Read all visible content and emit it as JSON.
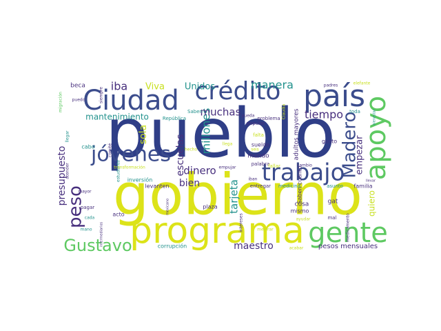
{
  "colors": {
    "background": "#ffffff",
    "navy": "#2f3e87",
    "indigo": "#3b4c8c",
    "purple": "#472f7d",
    "teal": "#21918c",
    "green": "#5ec962",
    "yellowgreen": "#c8e020",
    "yellow": "#dce319",
    "darkpurple": "#440154"
  },
  "words": [
    {
      "text": "pueblo",
      "weight": 1.0,
      "color": "navy"
    },
    {
      "text": "gobierno",
      "weight": 0.8,
      "color": "yellow"
    },
    {
      "text": "programa",
      "weight": 0.58,
      "color": "yellow"
    },
    {
      "text": "país",
      "weight": 0.48,
      "color": "indigo"
    },
    {
      "text": "apoyo",
      "weight": 0.45,
      "color": "green"
    },
    {
      "text": "Ciudad",
      "weight": 0.44,
      "color": "indigo"
    },
    {
      "text": "crédito",
      "weight": 0.4,
      "color": "indigo"
    },
    {
      "text": "gente",
      "weight": 0.43,
      "color": "green"
    },
    {
      "text": "trabajo",
      "weight": 0.36,
      "color": "indigo"
    },
    {
      "text": "jóvenes",
      "weight": 0.33,
      "color": "indigo"
    },
    {
      "text": "Gustavo",
      "weight": 0.3,
      "color": "green"
    },
    {
      "text": "Madero",
      "weight": 0.28,
      "color": "indigo"
    },
    {
      "text": "peso",
      "weight": 0.27,
      "color": "purple"
    },
    {
      "text": "tiempo",
      "weight": 0.16,
      "color": "purple"
    },
    {
      "text": "manera",
      "weight": 0.16,
      "color": "teal"
    },
    {
      "text": "millones",
      "weight": 0.18,
      "color": "teal"
    },
    {
      "text": "muchas",
      "weight": 0.15,
      "color": "purple"
    },
    {
      "text": "dinero",
      "weight": 0.15,
      "color": "purple"
    },
    {
      "text": "escuelas",
      "weight": 0.15,
      "color": "purple"
    },
    {
      "text": "presupuesto",
      "weight": 0.15,
      "color": "purple"
    },
    {
      "text": "empezar",
      "weight": 0.14,
      "color": "purple"
    },
    {
      "text": "maestro",
      "weight": 0.14,
      "color": "purple"
    },
    {
      "text": "tarjeta",
      "weight": 0.15,
      "color": "teal"
    },
    {
      "text": "bien",
      "weight": 0.13,
      "color": "purple"
    },
    {
      "text": "iba",
      "weight": 0.14,
      "color": "purple"
    },
    {
      "text": "Viva",
      "weight": 0.13,
      "color": "yellowgreen"
    },
    {
      "text": "Unidos",
      "weight": 0.13,
      "color": "teal"
    },
    {
      "text": "mantenimiento",
      "weight": 0.11,
      "color": "teal"
    },
    {
      "text": "sola",
      "weight": 0.12,
      "color": "yellowgreen"
    },
    {
      "text": "quiero",
      "weight": 0.12,
      "color": "yellowgreen"
    },
    {
      "text": "pesos mensuales",
      "weight": 0.1,
      "color": "purple"
    },
    {
      "text": "adultos mayores",
      "weight": 0.08,
      "color": "purple"
    },
    {
      "text": "Saben cuánto",
      "weight": 0.07,
      "color": "purple"
    },
    {
      "text": "gusto",
      "weight": 0.07,
      "color": "purple"
    },
    {
      "text": "beca",
      "weight": 0.07,
      "color": "purple"
    },
    {
      "text": "cosa",
      "weight": 0.07,
      "color": "purple"
    },
    {
      "text": "plaza",
      "weight": 0.06,
      "color": "purple"
    },
    {
      "text": "mundo",
      "weight": 0.07,
      "color": "purple"
    },
    {
      "text": "familia",
      "weight": 0.06,
      "color": "purple"
    },
    {
      "text": "gat",
      "weight": 0.07,
      "color": "purple"
    },
    {
      "text": "cabo",
      "weight": 0.07,
      "color": "teal"
    },
    {
      "text": "acto",
      "weight": 0.06,
      "color": "purple"
    },
    {
      "text": "mismo",
      "weight": 0.06,
      "color": "purple"
    },
    {
      "text": "levanten",
      "weight": 0.06,
      "color": "purple"
    },
    {
      "text": "inversión",
      "weight": 0.06,
      "color": "teal"
    },
    {
      "text": "corrupción",
      "weight": 0.06,
      "color": "teal"
    },
    {
      "text": "sueldo",
      "weight": 0.06,
      "color": "purple"
    },
    {
      "text": "problema",
      "weight": 0.06,
      "color": "purple"
    },
    {
      "text": "falta",
      "weight": 0.06,
      "color": "yellowgreen"
    },
    {
      "text": "toda",
      "weight": 0.06,
      "color": "teal"
    },
    {
      "text": "popular",
      "weight": 0.05,
      "color": "purple"
    },
    {
      "text": "palabra",
      "weight": 0.05,
      "color": "purple"
    },
    {
      "text": "Saben",
      "weight": 0.05,
      "color": "teal"
    },
    {
      "text": "República",
      "weight": 0.05,
      "color": "teal"
    },
    {
      "text": "pueda",
      "weight": 0.05,
      "color": "purple"
    },
    {
      "text": "medicina",
      "weight": 0.05,
      "color": "teal"
    },
    {
      "text": "cambio",
      "weight": 0.05,
      "color": "purple"
    },
    {
      "text": "pagar",
      "weight": 0.05,
      "color": "purple"
    },
    {
      "text": "cada",
      "weight": 0.05,
      "color": "teal"
    },
    {
      "text": "entregar",
      "weight": 0.05,
      "color": "purple"
    },
    {
      "text": "asunto",
      "weight": 0.05,
      "color": "teal"
    },
    {
      "text": "mal",
      "weight": 0.05,
      "color": "purple"
    },
    {
      "text": "empujar",
      "weight": 0.05,
      "color": "purple"
    },
    {
      "text": "fallar",
      "weight": 0.05,
      "color": "yellowgreen"
    },
    {
      "text": "siempre",
      "weight": 0.05,
      "color": "purple"
    },
    {
      "text": "puedo",
      "weight": 0.05,
      "color": "purple"
    },
    {
      "text": "migración",
      "weight": 0.04,
      "color": "green"
    },
    {
      "text": "llegar",
      "weight": 0.05,
      "color": "teal"
    },
    {
      "text": "atender",
      "weight": 0.05,
      "color": "purple"
    },
    {
      "text": "comité",
      "weight": 0.04,
      "color": "purple"
    },
    {
      "text": "estudiante",
      "weight": 0.04,
      "color": "teal"
    },
    {
      "text": "hecho",
      "weight": 0.04,
      "color": "yellowgreen"
    },
    {
      "text": "transformación",
      "weight": 0.04,
      "color": "yellowgreen"
    },
    {
      "text": "llega",
      "weight": 0.04,
      "color": "yellowgreen"
    },
    {
      "text": "seis",
      "weight": 0.04,
      "color": "yellowgreen"
    },
    {
      "text": "mexicano",
      "weight": 0.04,
      "color": "purple"
    },
    {
      "text": "intereses",
      "weight": 0.04,
      "color": "purple"
    },
    {
      "text": "iban",
      "weight": 0.04,
      "color": "purple"
    },
    {
      "text": "Claudia",
      "weight": 0.04,
      "color": "yellowgreen"
    },
    {
      "text": "mejorar",
      "weight": 0.04,
      "color": "yellowgreen"
    },
    {
      "text": "ayudar",
      "weight": 0.04,
      "color": "yellowgreen"
    },
    {
      "text": "acabar",
      "weight": 0.04,
      "color": "yellowgreen"
    },
    {
      "text": "padres",
      "weight": 0.04,
      "color": "purple"
    },
    {
      "text": "elefante",
      "weight": 0.04,
      "color": "yellowgreen"
    },
    {
      "text": "bienestar",
      "weight": 0.04,
      "color": "teal"
    },
    {
      "text": "llevar",
      "weight": 0.04,
      "color": "purple"
    },
    {
      "text": "medicamento",
      "weight": 0.04,
      "color": "purple"
    },
    {
      "text": "mano",
      "weight": 0.04,
      "color": "teal"
    },
    {
      "text": "mayor",
      "weight": 0.04,
      "color": "purple"
    },
    {
      "text": "intermediarios",
      "weight": 0.04,
      "color": "purple"
    }
  ]
}
